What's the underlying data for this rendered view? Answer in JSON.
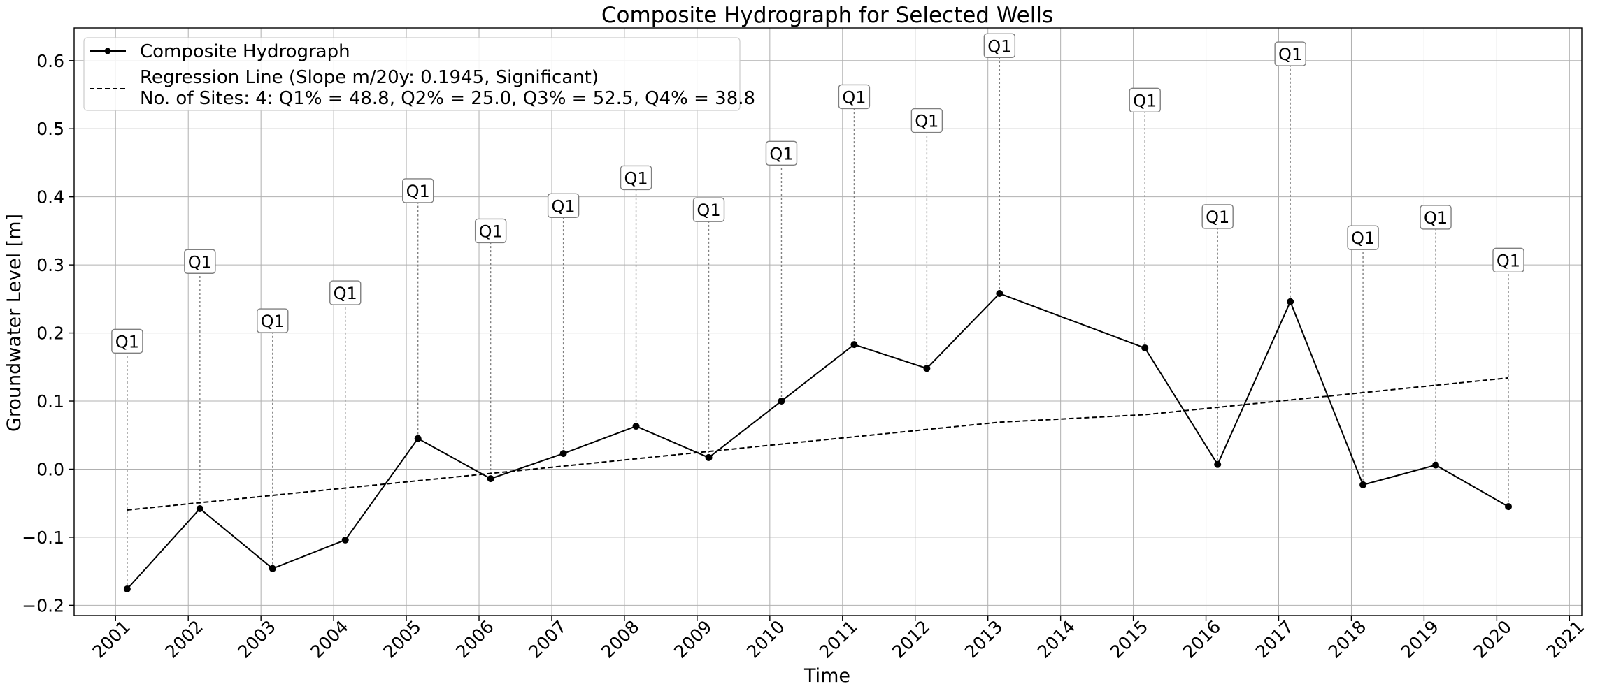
{
  "chart_data": {
    "type": "line",
    "title": "Composite Hydrograph for Selected Wells",
    "xlabel": "Time",
    "ylabel": "Groundwater Level [m]",
    "xlim": [
      2000.43,
      2021.17
    ],
    "ylim": [
      -0.215,
      0.648
    ],
    "x_ticks": [
      "2001",
      "2002",
      "2003",
      "2004",
      "2005",
      "2006",
      "2007",
      "2008",
      "2009",
      "2010",
      "2011",
      "2012",
      "2013",
      "2014",
      "2015",
      "2016",
      "2017",
      "2018",
      "2019",
      "2020",
      "2021"
    ],
    "y_ticks": [
      "0.6",
      "0.5",
      "0.4",
      "0.3",
      "0.2",
      "0.1",
      "0.0",
      "−0.1",
      "−0.2"
    ],
    "y_tick_values": [
      0.6,
      0.5,
      0.4,
      0.3,
      0.2,
      0.1,
      0.0,
      -0.1,
      -0.2
    ],
    "grid": true,
    "legend_position": "top-left",
    "series": [
      {
        "name": "Composite Hydrograph",
        "style": "solid-with-markers",
        "color": "#000000",
        "x": [
          2001.16,
          2002.16,
          2003.16,
          2004.16,
          2005.16,
          2006.16,
          2007.16,
          2008.16,
          2009.16,
          2010.16,
          2011.16,
          2012.16,
          2013.16,
          2015.16,
          2016.16,
          2017.16,
          2018.16,
          2019.16,
          2020.16
        ],
        "values": [
          -0.176,
          -0.058,
          -0.146,
          -0.104,
          0.045,
          -0.014,
          0.023,
          0.063,
          0.017,
          0.1,
          0.183,
          0.148,
          0.258,
          0.178,
          0.007,
          0.246,
          -0.023,
          0.006,
          -0.055
        ]
      },
      {
        "name": "Regression Line (Slope m/20y: 0.1945, Significant)",
        "style": "dashed",
        "color": "#000000",
        "x": [
          2001.16,
          2013.16,
          2015.16,
          2020.16
        ],
        "values": [
          -0.06,
          0.069,
          0.08,
          0.134
        ]
      }
    ],
    "legend_extra_line": "No. of Sites: 4: Q1% = 48.8, Q2% = 25.0, Q3% = 52.5, Q4% = 38.8",
    "annotations": [
      {
        "x": 2001.16,
        "y": 0.188,
        "text": "Q1"
      },
      {
        "x": 2002.16,
        "y": 0.305,
        "text": "Q1"
      },
      {
        "x": 2003.16,
        "y": 0.218,
        "text": "Q1"
      },
      {
        "x": 2004.16,
        "y": 0.259,
        "text": "Q1"
      },
      {
        "x": 2005.16,
        "y": 0.409,
        "text": "Q1"
      },
      {
        "x": 2006.16,
        "y": 0.35,
        "text": "Q1"
      },
      {
        "x": 2007.16,
        "y": 0.387,
        "text": "Q1"
      },
      {
        "x": 2008.16,
        "y": 0.428,
        "text": "Q1"
      },
      {
        "x": 2009.16,
        "y": 0.381,
        "text": "Q1"
      },
      {
        "x": 2010.16,
        "y": 0.464,
        "text": "Q1"
      },
      {
        "x": 2011.16,
        "y": 0.547,
        "text": "Q1"
      },
      {
        "x": 2012.16,
        "y": 0.512,
        "text": "Q1"
      },
      {
        "x": 2013.16,
        "y": 0.622,
        "text": "Q1"
      },
      {
        "x": 2015.16,
        "y": 0.542,
        "text": "Q1"
      },
      {
        "x": 2016.16,
        "y": 0.371,
        "text": "Q1"
      },
      {
        "x": 2017.16,
        "y": 0.61,
        "text": "Q1"
      },
      {
        "x": 2018.16,
        "y": 0.34,
        "text": "Q1"
      },
      {
        "x": 2019.16,
        "y": 0.37,
        "text": "Q1"
      },
      {
        "x": 2020.16,
        "y": 0.307,
        "text": "Q1"
      }
    ]
  }
}
